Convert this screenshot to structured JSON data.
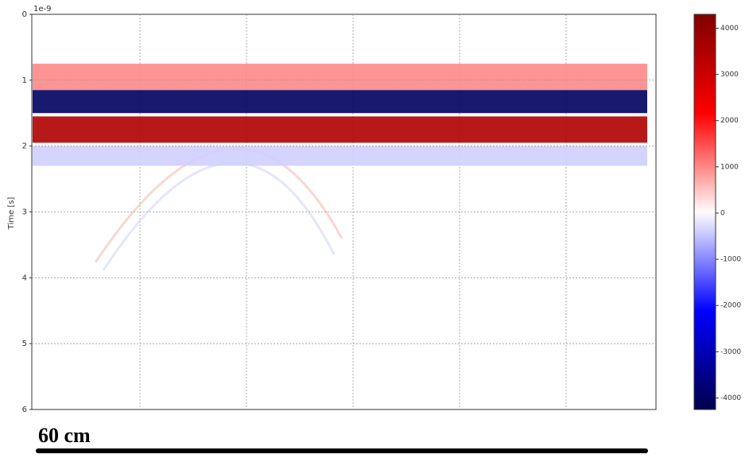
{
  "chart_data": {
    "type": "heatmap",
    "offset_label": "1e-9",
    "y_label": "Time [s]",
    "ylim": [
      0,
      6
    ],
    "yticks": [
      0,
      1,
      2,
      3,
      4,
      5,
      6
    ],
    "grid": true,
    "clim": [
      -4250,
      4300
    ],
    "cticks": [
      4000,
      3000,
      2000,
      1000,
      0,
      -1000,
      -2000,
      -3000,
      -4000
    ],
    "bands": [
      {
        "t0": 0.75,
        "t1": 1.15,
        "amplitude": 1000
      },
      {
        "t0": 1.15,
        "t1": 1.5,
        "amplitude": -4000
      },
      {
        "t0": 1.55,
        "t1": 1.95,
        "amplitude": 3500
      },
      {
        "t0": 2.0,
        "t1": 2.3,
        "amplitude": -400
      }
    ],
    "scale_label": "60 cm"
  }
}
